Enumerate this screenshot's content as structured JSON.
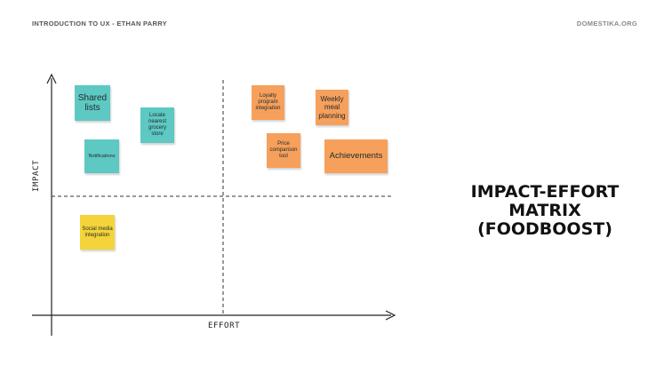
{
  "header": {
    "left": "INTRODUCTION TO UX - ETHAN PARRY",
    "right": "DOMESTIKA.ORG"
  },
  "axes": {
    "x_label": "EFFORT",
    "y_label": "IMPACT"
  },
  "notes": {
    "shared_lists": "Shared lists",
    "locate_grocery": "Locate nearest grocery store",
    "notifications": "Notifications",
    "social_media": "Social media integration",
    "loyalty_program": "Loyalty program integration",
    "weekly_meal": "Weekly meal planning",
    "price_comparison": "Price comparison tool",
    "achievements": "Achievements"
  },
  "colors": {
    "teal": "#5ec8c3",
    "orange": "#f6a05c",
    "yellow": "#f4d43a"
  },
  "title": {
    "line1": "IMPACT-EFFORT",
    "line2": "MATRIX",
    "line3": "(FOODBOOST)"
  }
}
